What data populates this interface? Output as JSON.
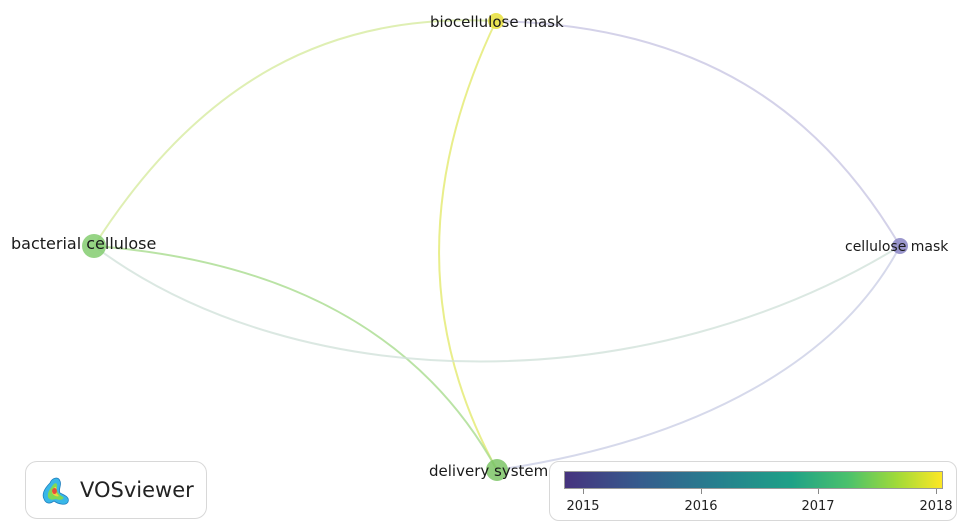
{
  "nodes": [
    {
      "id": "biocellulose",
      "label": "biocellulose mask",
      "color": "#e8df3a"
    },
    {
      "id": "bacterial",
      "label": "bacterial cellulose",
      "color": "#84cc70"
    },
    {
      "id": "cellulose",
      "label": "cellulose mask",
      "color": "#8a85c4"
    },
    {
      "id": "delivery",
      "label": "delivery system",
      "color": "#7cc466"
    }
  ],
  "links": [
    {
      "from": "bacterial",
      "to": "biocellulose"
    },
    {
      "from": "biocellulose",
      "to": "cellulose"
    },
    {
      "from": "biocellulose",
      "to": "delivery"
    },
    {
      "from": "bacterial",
      "to": "delivery"
    },
    {
      "from": "bacterial",
      "to": "cellulose"
    },
    {
      "from": "delivery",
      "to": "cellulose"
    }
  ],
  "logo": {
    "text": "VOSviewer"
  },
  "scale": {
    "labels": [
      "2015",
      "2016",
      "2017",
      "2018"
    ],
    "colors": [
      "#46337e",
      "#277f8e",
      "#4ac16d",
      "#fde725"
    ]
  }
}
